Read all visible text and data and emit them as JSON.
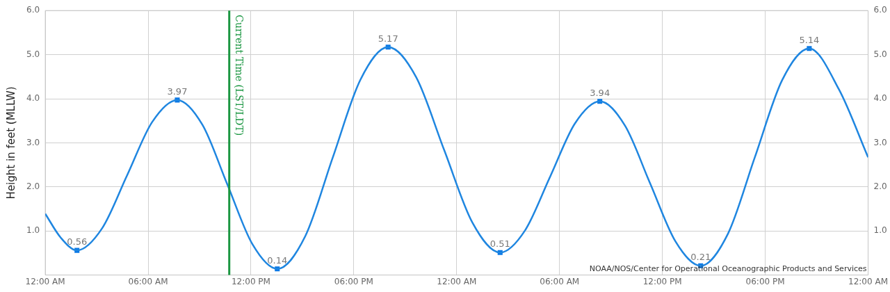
{
  "chart_data": {
    "type": "line",
    "ylabel": "Height in feet (MLLW)",
    "xlim": [
      "--01-01T00:00",
      "--01-03T00:00"
    ],
    "xticks": [
      {
        "value": "--01-01T00:00",
        "label": "12:00 AM"
      },
      {
        "value": "--01-01T06:00",
        "label": "06:00 AM"
      },
      {
        "value": "--01-01T12:00",
        "label": "12:00 PM"
      },
      {
        "value": "--01-01T18:00",
        "label": "06:00 PM"
      },
      {
        "value": "--01-02T00:00",
        "label": "12:00 AM"
      },
      {
        "value": "--01-02T06:00",
        "label": "06:00 AM"
      },
      {
        "value": "--01-02T12:00",
        "label": "12:00 PM"
      },
      {
        "value": "--01-02T18:00",
        "label": "06:00 PM"
      },
      {
        "value": "--01-03T00:00",
        "label": "12:00 AM"
      }
    ],
    "ylim": [
      0,
      6
    ],
    "yticks": [
      {
        "value": 1,
        "label": "1.0"
      },
      {
        "value": 2,
        "label": "2.0"
      },
      {
        "value": 3,
        "label": "3.0"
      },
      {
        "value": 4,
        "label": "4.0"
      },
      {
        "value": 5,
        "label": "5.0"
      },
      {
        "value": 6,
        "label": "6.0"
      }
    ],
    "y2lim": [
      0,
      6
    ],
    "y2ticks": [
      {
        "value": 1,
        "label": "1.0"
      },
      {
        "value": 2,
        "label": "2.0"
      },
      {
        "value": 3,
        "label": "3.0"
      },
      {
        "value": 4,
        "label": "4.0"
      },
      {
        "value": 5,
        "label": "5.0"
      },
      {
        "value": 6,
        "label": "6.0"
      }
    ],
    "grid": true,
    "legend": false,
    "series": [
      {
        "type": "line",
        "color": "#1f86e0",
        "marker": "none",
        "x": [
          "--01-01T00:00",
          "--01-01T00:54",
          "--01-01T01:51",
          "--01-01T03:19",
          "--01-01T04:47",
          "--01-01T06:14",
          "--01-01T07:42",
          "--01-01T09:10",
          "--01-01T10:37",
          "--01-01T12:05",
          "--01-01T13:32",
          "--01-01T15:10",
          "--01-01T16:46",
          "--01-01T18:23",
          "--01-01T20:00",
          "--01-01T21:38",
          "--01-01T23:16",
          "--01-02T00:55",
          "--01-02T02:32",
          "--01-02T03:59",
          "--01-02T05:27",
          "--01-02T06:54",
          "--01-02T08:21",
          "--01-02T09:49",
          "--01-02T11:17",
          "--01-02T12:46",
          "--01-02T14:14",
          "--01-02T15:49",
          "--01-02T17:24",
          "--01-02T18:59",
          "--01-02T20:34",
          "--01-02T22:18",
          "--01-03T00:00"
        ],
        "values": [
          1.39,
          0.85,
          0.56,
          1.06,
          2.27,
          3.47,
          3.97,
          3.41,
          2.06,
          0.7,
          0.14,
          0.88,
          2.66,
          4.43,
          5.17,
          4.49,
          2.84,
          1.19,
          0.51,
          1.01,
          2.23,
          3.44,
          3.94,
          3.39,
          2.08,
          0.76,
          0.21,
          0.93,
          2.68,
          4.42,
          5.14,
          4.21,
          2.67
        ]
      },
      {
        "type": "scatter",
        "color": "#0a78e6",
        "marker": "square",
        "x": [
          "--01-01T01:51",
          "--01-01T07:42",
          "--01-01T13:32",
          "--01-01T20:00",
          "--01-02T02:32",
          "--01-02T08:21",
          "--01-02T14:14",
          "--01-02T20:34"
        ],
        "values": [
          0.56,
          3.97,
          0.14,
          5.17,
          0.51,
          3.94,
          0.21,
          5.14
        ],
        "value_labels": [
          "0.56",
          "3.97",
          "0.14",
          "5.17",
          "0.51",
          "3.94",
          "0.21",
          "5.14"
        ]
      }
    ],
    "ref_lines": [
      {
        "axis": "x",
        "value": "--01-01T10:44",
        "label": "Current Time (LST/LDT)",
        "color": "#1a9641"
      }
    ],
    "annotations": [
      "NOAA/NOS/Center for Operational Oceanographic Products and Services"
    ]
  }
}
